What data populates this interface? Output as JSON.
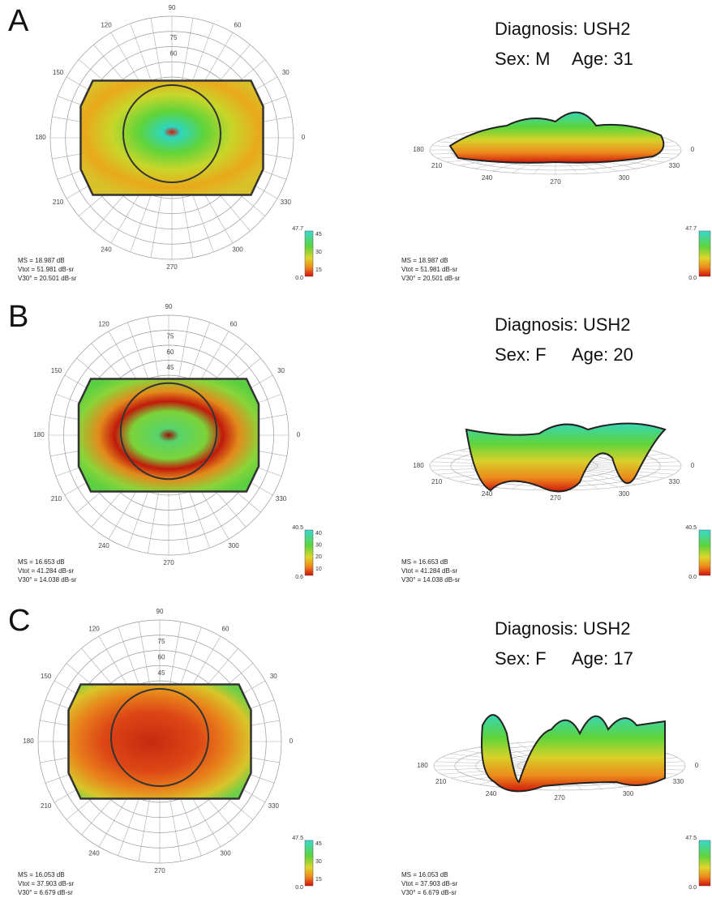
{
  "polar_angle_labels": [
    "90",
    "60",
    "30",
    "0",
    "330",
    "300",
    "270",
    "240",
    "210",
    "180",
    "150",
    "120"
  ],
  "surface_angle_labels": [
    "180",
    "210",
    "240",
    "270",
    "300",
    "330",
    "0"
  ],
  "panels": [
    {
      "label": "A",
      "diagnosis": "Diagnosis: USH2",
      "sex": "Sex: M",
      "age": "Age: 31",
      "stats": [
        "MS = 18.987 dB",
        "Vtot = 51.981 dB-sr",
        "V30° = 20.501 dB-sr"
      ],
      "radius_labels": [
        "75",
        "60"
      ],
      "colorbar": {
        "max": "47.7",
        "ticks": [
          "45",
          "30",
          "15"
        ],
        "min": "0.0"
      },
      "colorbar_right": {
        "max": "47.7",
        "min": "0.0"
      }
    },
    {
      "label": "B",
      "diagnosis": "Diagnosis: USH2",
      "sex": "Sex: F",
      "age": "Age: 20",
      "stats": [
        "MS = 16.653 dB",
        "Vtot = 41.284 dB-sr",
        "V30° = 14.038 dB-sr"
      ],
      "radius_labels": [
        "75",
        "60",
        "45"
      ],
      "colorbar": {
        "max": "40.5",
        "ticks": [
          "40",
          "30",
          "20",
          "10"
        ],
        "min": "0.6"
      },
      "colorbar_right": {
        "max": "40.5",
        "min": "0.0"
      }
    },
    {
      "label": "C",
      "diagnosis": "Diagnosis: USH2",
      "sex": "Sex: F",
      "age": "Age: 17",
      "stats": [
        "MS = 16.053 dB",
        "Vtot = 37.903 dB-sr",
        "V30° = 6.679 dB-sr"
      ],
      "radius_labels": [
        "75",
        "60",
        "45"
      ],
      "colorbar": {
        "max": "47.5",
        "ticks": [
          "45",
          "30",
          "15"
        ],
        "min": "0.0"
      },
      "colorbar_right": {
        "max": "47.5",
        "min": "0.0"
      }
    }
  ]
}
